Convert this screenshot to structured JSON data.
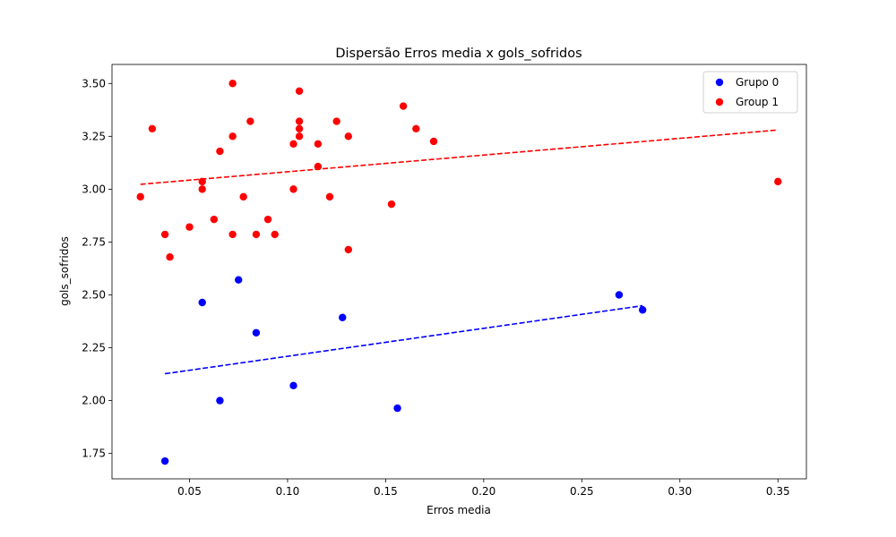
{
  "chart_data": {
    "type": "scatter",
    "title": "Dispersão Erros media x gols_sofridos",
    "xlabel": "Erros media",
    "ylabel": "gols_sofridos",
    "xlim": [
      0.0105,
      0.3645
    ],
    "ylim": [
      1.63,
      3.59
    ],
    "xticks": [
      "0.05",
      "0.10",
      "0.15",
      "0.20",
      "0.25",
      "0.30",
      "0.35"
    ],
    "yticks": [
      "1.75",
      "2.00",
      "2.25",
      "2.50",
      "2.75",
      "3.00",
      "3.25",
      "3.50"
    ],
    "grid": false,
    "legend_position": "top-right",
    "series": [
      {
        "name": "Grupo 0",
        "color": "#0000ff",
        "points": [
          [
            0.0375,
            1.714
          ],
          [
            0.0565,
            2.464
          ],
          [
            0.0655,
            2.0
          ],
          [
            0.075,
            2.571
          ],
          [
            0.084,
            2.321
          ],
          [
            0.103,
            2.071
          ],
          [
            0.128,
            2.393
          ],
          [
            0.156,
            1.964
          ],
          [
            0.269,
            2.5
          ],
          [
            0.281,
            2.429
          ]
        ],
        "trendline": {
          "x": [
            0.0375,
            0.281
          ],
          "y": [
            2.127,
            2.449
          ]
        }
      },
      {
        "name": "Group 1",
        "color": "#ff0000",
        "points": [
          [
            0.025,
            2.964
          ],
          [
            0.031,
            3.286
          ],
          [
            0.0375,
            2.786
          ],
          [
            0.04,
            2.679
          ],
          [
            0.05,
            2.821
          ],
          [
            0.0565,
            3.036
          ],
          [
            0.0565,
            3.0
          ],
          [
            0.0625,
            2.857
          ],
          [
            0.0655,
            3.179
          ],
          [
            0.072,
            3.5
          ],
          [
            0.072,
            3.25
          ],
          [
            0.072,
            2.786
          ],
          [
            0.0775,
            2.964
          ],
          [
            0.081,
            3.321
          ],
          [
            0.084,
            2.786
          ],
          [
            0.09,
            2.857
          ],
          [
            0.0935,
            2.786
          ],
          [
            0.103,
            3.214
          ],
          [
            0.103,
            3.0
          ],
          [
            0.106,
            3.464
          ],
          [
            0.106,
            3.321
          ],
          [
            0.106,
            3.286
          ],
          [
            0.106,
            3.25
          ],
          [
            0.1155,
            3.214
          ],
          [
            0.1155,
            3.107
          ],
          [
            0.1215,
            2.964
          ],
          [
            0.125,
            3.321
          ],
          [
            0.131,
            3.25
          ],
          [
            0.131,
            2.714
          ],
          [
            0.153,
            2.929
          ],
          [
            0.159,
            3.393
          ],
          [
            0.1655,
            3.286
          ],
          [
            0.1745,
            3.226
          ],
          [
            0.35,
            3.036
          ]
        ],
        "trendline": {
          "x": [
            0.025,
            0.35
          ],
          "y": [
            3.023,
            3.28
          ]
        }
      }
    ]
  }
}
